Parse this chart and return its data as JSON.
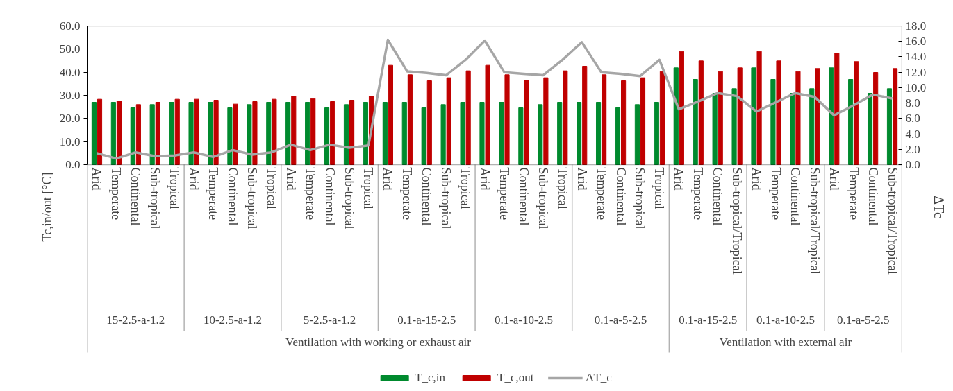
{
  "chart_data": {
    "type": "bar",
    "ylabel": "Tc,in/out [°C]",
    "y2label": "ΔTc",
    "legend": "bottom",
    "categories": [
      "Arid",
      "Temperate",
      "Continental",
      "Sub-tropical",
      "Tropical",
      "Arid",
      "Temperate",
      "Continental",
      "Sub-tropical",
      "Tropical",
      "Arid",
      "Temperate",
      "Continental",
      "Sub-tropical",
      "Tropical",
      "Arid",
      "Temperate",
      "Continental",
      "Sub-tropical",
      "Tropical",
      "Arid",
      "Temperate",
      "Continental",
      "Sub-tropical",
      "Tropical",
      "Arid",
      "Temperate",
      "Continental",
      "Sub-tropical",
      "Tropical",
      "Arid",
      "Temperate",
      "Continental",
      "Sub-tropical/Tropical",
      "Arid",
      "Temperate",
      "Continental",
      "Sub-tropical/Tropical",
      "Arid",
      "Temperate",
      "Continental",
      "Sub-tropical/Tropical"
    ],
    "series": [
      {
        "name": "T_c,in",
        "color": "#008a2e",
        "values": [
          27,
          27,
          24.6,
          26,
          27,
          27,
          27,
          24.6,
          26,
          27,
          27,
          27,
          24.6,
          26,
          27,
          27,
          27,
          24.6,
          26,
          27,
          27,
          27,
          24.6,
          26,
          27,
          27,
          27,
          24.6,
          26,
          27,
          41.9,
          36.9,
          30.9,
          32.9,
          41.9,
          36.9,
          30.9,
          32.9,
          41.9,
          36.9,
          30.9,
          32.9
        ]
      },
      {
        "name": "T_c,out",
        "color": "#c00000",
        "values": [
          28.3,
          27.6,
          26.0,
          27.0,
          28.3,
          28.3,
          27.9,
          26.2,
          27.3,
          28.3,
          29.6,
          28.6,
          27.3,
          27.9,
          29.6,
          43.0,
          38.9,
          36.3,
          37.6,
          40.6,
          43.0,
          38.9,
          36.3,
          37.6,
          40.6,
          42.6,
          38.9,
          36.3,
          37.6,
          40.3,
          49.0,
          44.9,
          40.3,
          41.9,
          49.0,
          44.9,
          40.3,
          41.6,
          48.3,
          44.6,
          39.9,
          41.6
        ]
      },
      {
        "name": "ΔT_c",
        "type": "line",
        "axis": "y2",
        "color": "#a6a6a6",
        "values": [
          1.5,
          0.8,
          1.6,
          1.1,
          1.2,
          1.6,
          1.0,
          1.9,
          1.3,
          1.6,
          2.6,
          1.9,
          2.6,
          2.2,
          2.5,
          16.2,
          12.1,
          11.9,
          11.6,
          13.6,
          16.1,
          12.0,
          11.8,
          11.6,
          13.6,
          15.9,
          12.0,
          11.8,
          11.5,
          13.6,
          7.2,
          8.2,
          9.3,
          8.9,
          6.9,
          8.1,
          9.3,
          8.8,
          6.4,
          7.7,
          9.1,
          8.6
        ]
      }
    ],
    "ylim": [
      0,
      60
    ],
    "yticks": [
      {
        "value": 0,
        "label": "0.0"
      },
      {
        "value": 10,
        "label": "10.0"
      },
      {
        "value": 20,
        "label": "20.0"
      },
      {
        "value": 30,
        "label": "30.0"
      },
      {
        "value": 40,
        "label": "40.0"
      },
      {
        "value": 50,
        "label": "50.0"
      },
      {
        "value": 60,
        "label": "60.0"
      }
    ],
    "y2lim": [
      0,
      18
    ],
    "y2ticks": [
      {
        "value": 0,
        "label": "0.0"
      },
      {
        "value": 2,
        "label": "2.0"
      },
      {
        "value": 4,
        "label": "4.0"
      },
      {
        "value": 6,
        "label": "6.0"
      },
      {
        "value": 8,
        "label": "8.0"
      },
      {
        "value": 10,
        "label": "10.0"
      },
      {
        "value": 12,
        "label": "12.0"
      },
      {
        "value": 14,
        "label": "14.0"
      },
      {
        "value": 16,
        "label": "16.0"
      },
      {
        "value": 18,
        "label": "18.0"
      }
    ],
    "annotations": [
      "15-2.5-a-1.2",
      "10-2.5-a-1.2",
      "5-2.5-a-1.2",
      "0.1-a-15-2.5",
      "0.1-a-10-2.5",
      "0.1-a-5-2.5",
      "0.1-a-15-2.5",
      "0.1-a-10-2.5",
      "0.1-a-5-2.5",
      "Ventilation with working or exhaust air",
      "Ventilation with external air"
    ]
  }
}
